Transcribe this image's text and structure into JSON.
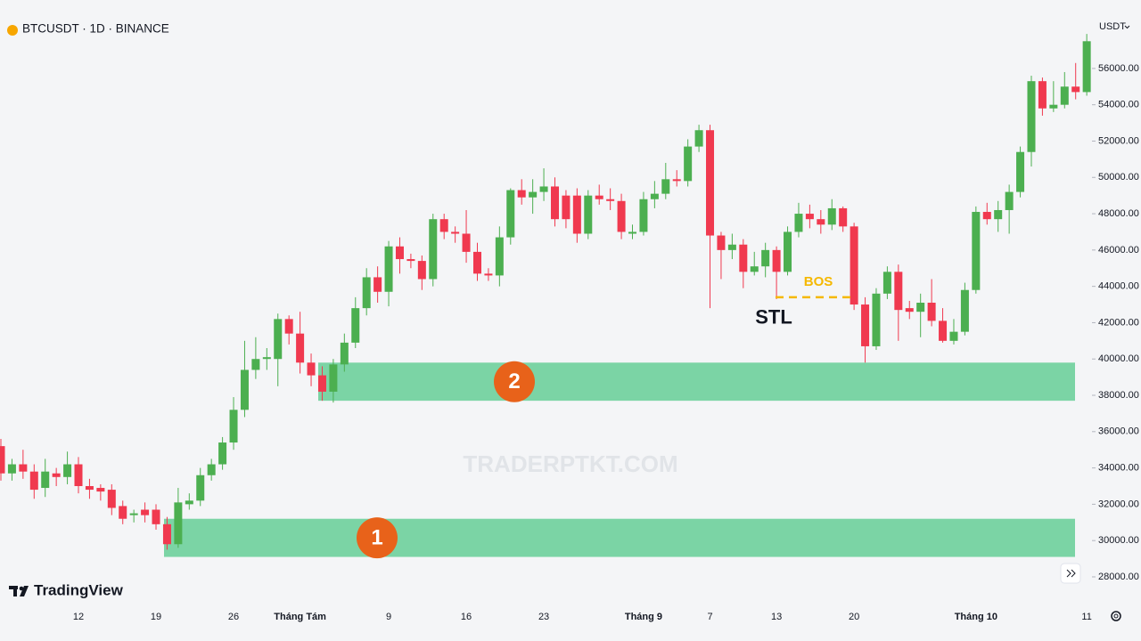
{
  "header": {
    "symbol": "BTCUSDT · 1D · BINANCE",
    "currency": "USDT",
    "brand": "TradingView",
    "watermark": "TRADERPTKT.COM"
  },
  "chart_data": {
    "type": "candlestick",
    "categories": [
      null,
      null,
      null,
      null,
      null,
      null,
      null,
      "12",
      null,
      null,
      null,
      null,
      null,
      null,
      "19",
      null,
      null,
      null,
      null,
      null,
      null,
      "26",
      null,
      null,
      null,
      null,
      null,
      "Tháng Tám",
      null,
      null,
      null,
      null,
      null,
      null,
      null,
      "9",
      null,
      null,
      null,
      null,
      null,
      null,
      "16",
      null,
      null,
      null,
      null,
      null,
      null,
      "23",
      null,
      null,
      null,
      null,
      null,
      null,
      null,
      null,
      "Tháng 9",
      null,
      null,
      null,
      null,
      null,
      "7",
      null,
      null,
      null,
      null,
      null,
      "13",
      null,
      null,
      null,
      null,
      null,
      null,
      "20",
      null,
      null,
      null,
      null,
      null,
      null,
      null,
      null,
      null,
      null,
      "Tháng 10",
      null,
      null,
      null,
      null,
      null,
      null,
      null,
      null,
      null,
      "11"
    ],
    "open": [
      35200,
      33700,
      34200,
      33800,
      32900,
      33700,
      33500,
      34200,
      33000,
      32900,
      32800,
      31900,
      31400,
      31700,
      31700,
      30900,
      29800,
      32000,
      32200,
      33600,
      34200,
      35400,
      37200,
      39400,
      40000,
      40000,
      42200,
      41400,
      39800,
      39100,
      38200,
      39700,
      40900,
      42800,
      44500,
      43700,
      46200,
      45500,
      45400,
      44400,
      47700,
      47000,
      46900,
      45900,
      44700,
      44600,
      46700,
      49300,
      48900,
      49200,
      49500,
      49000,
      49000,
      46900,
      49000,
      48800,
      48700,
      46900,
      47000,
      48800,
      49100,
      49900,
      49800,
      51700,
      52600,
      46800,
      46000,
      46300,
      44800,
      45100,
      46000,
      44800,
      47000,
      48000,
      47700,
      47400,
      48300,
      47300,
      43000,
      40700,
      43600,
      44800,
      42800,
      42600,
      43100,
      42100,
      41000,
      41500,
      43800,
      48100,
      47700,
      48200,
      49200,
      51400,
      55300,
      53800,
      54000,
      55000,
      54700
    ],
    "high": [
      35600,
      34500,
      35000,
      34200,
      34500,
      34000,
      34900,
      34600,
      33400,
      33100,
      33100,
      32200,
      31700,
      32100,
      32000,
      31300,
      32900,
      32600,
      34000,
      34500,
      35700,
      37900,
      41000,
      41200,
      40600,
      42500,
      42400,
      42600,
      40300,
      39600,
      40000,
      41400,
      43400,
      45000,
      45100,
      46500,
      46700,
      45800,
      45700,
      48000,
      48000,
      47300,
      48200,
      46400,
      45000,
      47300,
      49400,
      49900,
      49900,
      50500,
      50000,
      49300,
      49400,
      49300,
      49600,
      49400,
      49100,
      47400,
      49200,
      49800,
      50800,
      50400,
      52100,
      52900,
      52900,
      47000,
      46900,
      46600,
      45900,
      46400,
      46200,
      47300,
      48600,
      48500,
      48200,
      48800,
      48400,
      47500,
      43400,
      43900,
      45100,
      45200,
      43200,
      43600,
      44400,
      42800,
      42200,
      44200,
      48400,
      48600,
      48700,
      49600,
      51700,
      55600,
      55500,
      55300,
      55800,
      56300,
      57900
    ],
    "low": [
      33300,
      33300,
      33400,
      32300,
      32400,
      33000,
      33100,
      32600,
      32300,
      32200,
      31400,
      30900,
      31000,
      31000,
      30600,
      29500,
      29600,
      31700,
      31900,
      33300,
      33900,
      35000,
      36800,
      38900,
      39400,
      38500,
      40800,
      39200,
      38500,
      37700,
      37600,
      39300,
      40600,
      42400,
      43100,
      42900,
      44700,
      45000,
      43800,
      44000,
      46600,
      46400,
      45300,
      44300,
      44300,
      44000,
      46300,
      48500,
      48000,
      48700,
      47300,
      47200,
      46400,
      46600,
      48500,
      48200,
      46600,
      46600,
      46800,
      48300,
      48800,
      49500,
      49500,
      51400,
      42800,
      44400,
      45500,
      43900,
      44600,
      44500,
      43300,
      44600,
      46700,
      47200,
      46900,
      47100,
      47000,
      42700,
      39800,
      40500,
      43300,
      41000,
      42200,
      41200,
      41800,
      40900,
      40800,
      41300,
      43600,
      47400,
      47000,
      46900,
      48900,
      50600,
      53400,
      53600,
      53800,
      54300,
      54500
    ],
    "close": [
      33700,
      34200,
      33800,
      32800,
      33800,
      33500,
      34200,
      33000,
      32800,
      32700,
      31800,
      31200,
      31500,
      31400,
      30900,
      29800,
      32100,
      32200,
      33600,
      34200,
      35400,
      37200,
      39400,
      40000,
      40100,
      42200,
      41400,
      39800,
      39100,
      38200,
      39700,
      40900,
      42800,
      44500,
      43700,
      46200,
      45500,
      45400,
      44400,
      47700,
      47000,
      46900,
      45900,
      44700,
      44600,
      46700,
      49300,
      48900,
      49200,
      49500,
      47700,
      47700,
      46900,
      49000,
      48800,
      48700,
      47000,
      47000,
      48800,
      49100,
      49900,
      49800,
      51700,
      52600,
      46800,
      46000,
      46300,
      44800,
      45100,
      46000,
      44800,
      47000,
      48000,
      47700,
      47400,
      48300,
      47300,
      43000,
      40700,
      43600,
      44800,
      42700,
      42600,
      43100,
      42100,
      41000,
      41500,
      43800,
      48100,
      47700,
      48200,
      49200,
      51400,
      55300,
      53800,
      54000,
      55000,
      54700,
      57500
    ],
    "up_color": "#4caf50",
    "down_color": "#f0394f",
    "ylim": [
      26430,
      59770
    ],
    "yticks": [
      {
        "value": 28000,
        "label": "28000.00"
      },
      {
        "value": 30000,
        "label": "30000.00"
      },
      {
        "value": 32000,
        "label": "32000.00"
      },
      {
        "value": 34000,
        "label": "34000.00"
      },
      {
        "value": 36000,
        "label": "36000.00"
      },
      {
        "value": 38000,
        "label": "38000.00"
      },
      {
        "value": 40000,
        "label": "40000.00"
      },
      {
        "value": 42000,
        "label": "42000.00"
      },
      {
        "value": 44000,
        "label": "44000.00"
      },
      {
        "value": 46000,
        "label": "46000.00"
      },
      {
        "value": 48000,
        "label": "48000.00"
      },
      {
        "value": 50000,
        "label": "50000.00"
      },
      {
        "value": 52000,
        "label": "52000.00"
      },
      {
        "value": 54000,
        "label": "54000.00"
      },
      {
        "value": 56000,
        "label": "56000.00"
      }
    ],
    "zones": [
      {
        "label": "1",
        "low": 29100,
        "high": 31200
      },
      {
        "label": "2",
        "low": 37700,
        "high": 39800
      }
    ],
    "zone_color": "#7bd4a5",
    "bos": {
      "label": "BOS",
      "value": 43400,
      "color": "#f5b800"
    },
    "annotation": "STL"
  }
}
